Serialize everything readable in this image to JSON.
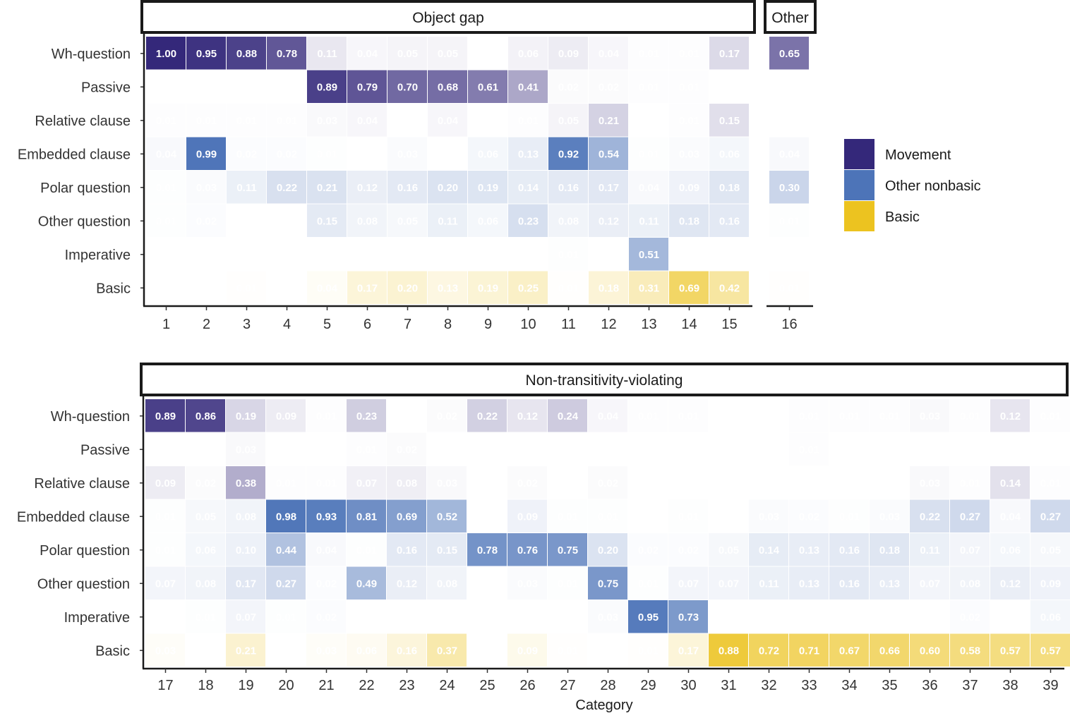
{
  "chart_data": {
    "type": "heatmap",
    "xlabel": "Category",
    "color_scale": {
      "Movement": "#34287a",
      "Other nonbasic": "#4d74b8",
      "Basic": "#ecc320"
    },
    "legend": [
      {
        "label": "Movement",
        "color": "#34287a"
      },
      {
        "label": "Other nonbasic",
        "color": "#4d74b8"
      },
      {
        "label": "Basic",
        "color": "#ecc320"
      }
    ],
    "rows": [
      "Wh-question",
      "Passive",
      "Relative clause",
      "Embedded clause",
      "Polar question",
      "Other question",
      "Imperative",
      "Basic"
    ],
    "row_color_group": [
      "Movement",
      "Movement",
      "Movement",
      "Other nonbasic",
      "Other nonbasic",
      "Other nonbasic",
      "Other nonbasic",
      "Basic"
    ],
    "panels": [
      {
        "strip": "Object gap",
        "x": [
          1,
          2,
          3,
          4,
          5,
          6,
          7,
          8,
          9,
          10,
          11,
          12,
          13,
          14,
          15
        ],
        "values": [
          [
            1.0,
            0.95,
            0.88,
            0.78,
            0.11,
            0.04,
            0.05,
            0.05,
            null,
            0.06,
            0.09,
            0.04,
            0.01,
            0.01,
            0.17
          ],
          [
            null,
            null,
            null,
            null,
            0.89,
            0.79,
            0.7,
            0.68,
            0.61,
            0.41,
            0.02,
            0.02,
            0.01,
            0.01,
            null
          ],
          [
            0.01,
            0.01,
            0.01,
            0.01,
            0.03,
            0.04,
            null,
            0.04,
            null,
            0.01,
            0.05,
            0.21,
            null,
            0.01,
            0.15
          ],
          [
            0.04,
            0.99,
            0.02,
            0.02,
            0.01,
            null,
            0.03,
            null,
            0.06,
            0.13,
            0.92,
            0.54,
            0.01,
            0.03,
            0.06
          ],
          [
            0.01,
            0.03,
            0.11,
            0.22,
            0.21,
            0.12,
            0.16,
            0.2,
            0.19,
            0.14,
            0.16,
            0.17,
            0.04,
            0.09,
            0.18
          ],
          [
            0.01,
            0.02,
            null,
            null,
            0.15,
            0.08,
            0.05,
            0.11,
            0.06,
            0.23,
            0.08,
            0.12,
            0.11,
            0.18,
            0.16
          ],
          [
            null,
            null,
            null,
            null,
            null,
            null,
            null,
            null,
            null,
            null,
            0.01,
            null,
            0.51,
            null,
            null
          ],
          [
            null,
            null,
            0.01,
            null,
            0.04,
            0.17,
            0.2,
            0.13,
            0.19,
            0.25,
            0.01,
            0.18,
            0.31,
            0.69,
            0.42
          ]
        ]
      },
      {
        "strip": "Other",
        "x": [
          16
        ],
        "values": [
          [
            0.65
          ],
          [
            null
          ],
          [
            null
          ],
          [
            0.04
          ],
          [
            0.3
          ],
          [
            0.01
          ],
          [
            null
          ],
          [
            0.01
          ]
        ]
      },
      {
        "strip": "Non-transitivity-violating",
        "x": [
          17,
          18,
          19,
          20,
          21,
          22,
          23,
          24,
          25,
          26,
          27,
          28,
          29,
          30,
          31,
          32,
          33,
          34,
          35,
          36,
          37,
          38,
          39
        ],
        "values": [
          [
            0.89,
            0.86,
            0.19,
            0.09,
            0.01,
            0.23,
            null,
            0.02,
            0.22,
            0.12,
            0.24,
            0.04,
            0.01,
            0.01,
            null,
            null,
            0.01,
            0.01,
            0.01,
            0.03,
            0.01,
            0.12,
            0.01
          ],
          [
            null,
            null,
            0.03,
            null,
            null,
            0.01,
            0.02,
            null,
            null,
            null,
            null,
            null,
            null,
            null,
            null,
            null,
            0.01,
            null,
            null,
            null,
            null,
            null,
            null
          ],
          [
            0.09,
            0.02,
            0.38,
            0.01,
            0.01,
            0.07,
            0.08,
            0.03,
            null,
            0.02,
            null,
            0.02,
            null,
            null,
            null,
            null,
            null,
            null,
            null,
            0.03,
            0.01,
            0.14,
            0.01
          ],
          [
            0.01,
            0.05,
            0.08,
            0.98,
            0.93,
            0.81,
            0.69,
            0.52,
            null,
            0.09,
            0.01,
            0.01,
            null,
            0.01,
            null,
            0.03,
            0.02,
            0.01,
            0.03,
            0.22,
            0.27,
            0.04,
            0.27
          ],
          [
            0.01,
            0.06,
            0.1,
            0.44,
            0.04,
            0.01,
            0.16,
            0.15,
            0.78,
            0.76,
            0.75,
            0.2,
            0.02,
            0.02,
            0.05,
            0.14,
            0.13,
            0.16,
            0.18,
            0.11,
            0.07,
            0.06,
            0.05
          ],
          [
            0.07,
            0.08,
            0.17,
            0.27,
            0.02,
            0.49,
            0.12,
            0.08,
            null,
            0.03,
            0.01,
            0.75,
            0.01,
            0.07,
            0.07,
            0.11,
            0.13,
            0.16,
            0.13,
            0.07,
            0.08,
            0.12,
            0.09
          ],
          [
            null,
            0.01,
            0.07,
            0.01,
            0.02,
            null,
            null,
            null,
            null,
            null,
            null,
            0.03,
            0.95,
            0.73,
            null,
            null,
            null,
            null,
            null,
            null,
            0.02,
            null,
            0.06
          ],
          [
            0.03,
            null,
            0.21,
            null,
            0.03,
            0.06,
            0.16,
            0.37,
            null,
            0.09,
            0.01,
            null,
            0.01,
            0.17,
            0.88,
            0.72,
            0.71,
            0.67,
            0.66,
            0.6,
            0.58,
            0.57,
            0.57
          ]
        ]
      }
    ]
  }
}
